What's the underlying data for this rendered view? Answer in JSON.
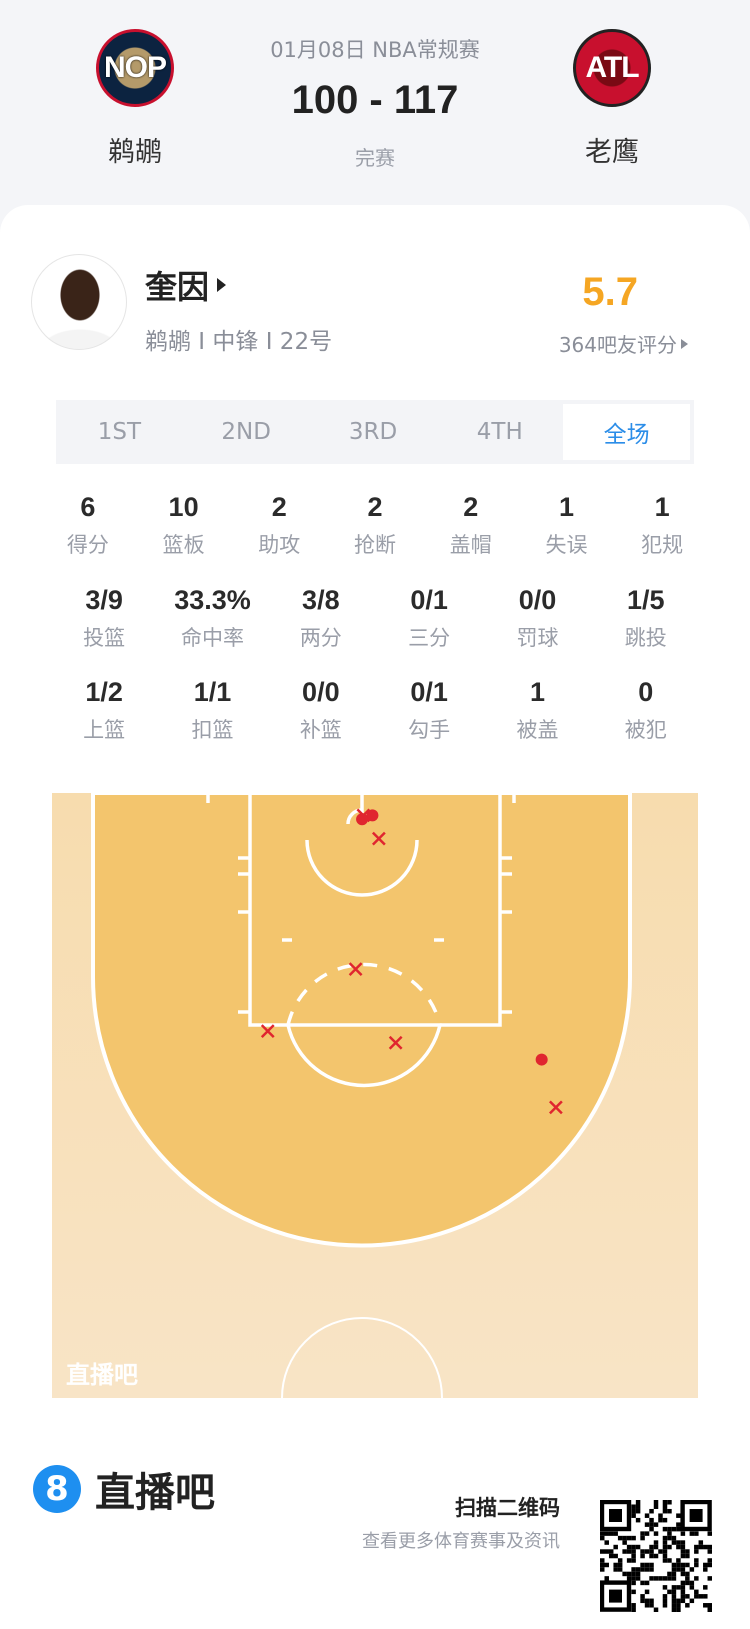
{
  "match": {
    "date_league": "01月08日 NBA常规赛",
    "score": "100 - 117",
    "status": "完赛",
    "home": {
      "abbr": "NOP",
      "name": "鹈鹕",
      "color": "#0c2340",
      "accent": "#c8102e"
    },
    "away": {
      "abbr": "ATL",
      "name": "老鹰",
      "color": "#c8102e"
    }
  },
  "player": {
    "name": "奎因",
    "info": "鹈鹕 I 中锋 I 22号",
    "rating": "5.7",
    "rating_color": "#f5a623",
    "rating_count": "364吧友评分"
  },
  "tabs": [
    {
      "label": "1ST"
    },
    {
      "label": "2ND"
    },
    {
      "label": "3RD"
    },
    {
      "label": "4TH"
    },
    {
      "label": "全场",
      "active": true
    }
  ],
  "stats": [
    [
      {
        "v": "6",
        "l": "得分"
      },
      {
        "v": "10",
        "l": "篮板"
      },
      {
        "v": "2",
        "l": "助攻"
      },
      {
        "v": "2",
        "l": "抢断"
      },
      {
        "v": "2",
        "l": "盖帽"
      },
      {
        "v": "1",
        "l": "失误"
      },
      {
        "v": "1",
        "l": "犯规"
      }
    ],
    [
      {
        "v": "3/9",
        "l": "投篮"
      },
      {
        "v": "33.3%",
        "l": "命中率"
      },
      {
        "v": "3/8",
        "l": "两分"
      },
      {
        "v": "0/1",
        "l": "三分"
      },
      {
        "v": "0/0",
        "l": "罚球"
      },
      {
        "v": "1/5",
        "l": "跳投"
      }
    ],
    [
      {
        "v": "1/2",
        "l": "上篮"
      },
      {
        "v": "1/1",
        "l": "扣篮"
      },
      {
        "v": "0/0",
        "l": "补篮"
      },
      {
        "v": "0/1",
        "l": "勾手"
      },
      {
        "v": "1",
        "l": "被盖"
      },
      {
        "v": "0",
        "l": "被犯"
      }
    ]
  ],
  "shot_chart": {
    "watermark": "直播吧",
    "make_color": "#e0262f",
    "miss_color": "#e0262f",
    "shots": [
      {
        "result": "make",
        "x_ft": -0.2,
        "y_ft": 1.5
      },
      {
        "result": "make",
        "x_ft": -1.0,
        "y_ft": 1.8
      },
      {
        "result": "miss",
        "x_ft": -0.9,
        "y_ft": 1.5
      },
      {
        "result": "miss",
        "x_ft": 0.3,
        "y_ft": 3.3
      },
      {
        "result": "miss",
        "x_ft": -1.5,
        "y_ft": 13.4
      },
      {
        "result": "miss",
        "x_ft": -8.3,
        "y_ft": 18.2
      },
      {
        "result": "miss",
        "x_ft": 1.6,
        "y_ft": 19.1
      },
      {
        "result": "make",
        "x_ft": 12.9,
        "y_ft": 20.4
      },
      {
        "result": "miss",
        "x_ft": 14.0,
        "y_ft": 24.1
      }
    ]
  },
  "footer": {
    "brand": "直播吧",
    "brand_icon": "8",
    "scan": "扫描二维码",
    "sub": "查看更多体育赛事及资讯",
    "brand_color": "#1e8ff0"
  }
}
